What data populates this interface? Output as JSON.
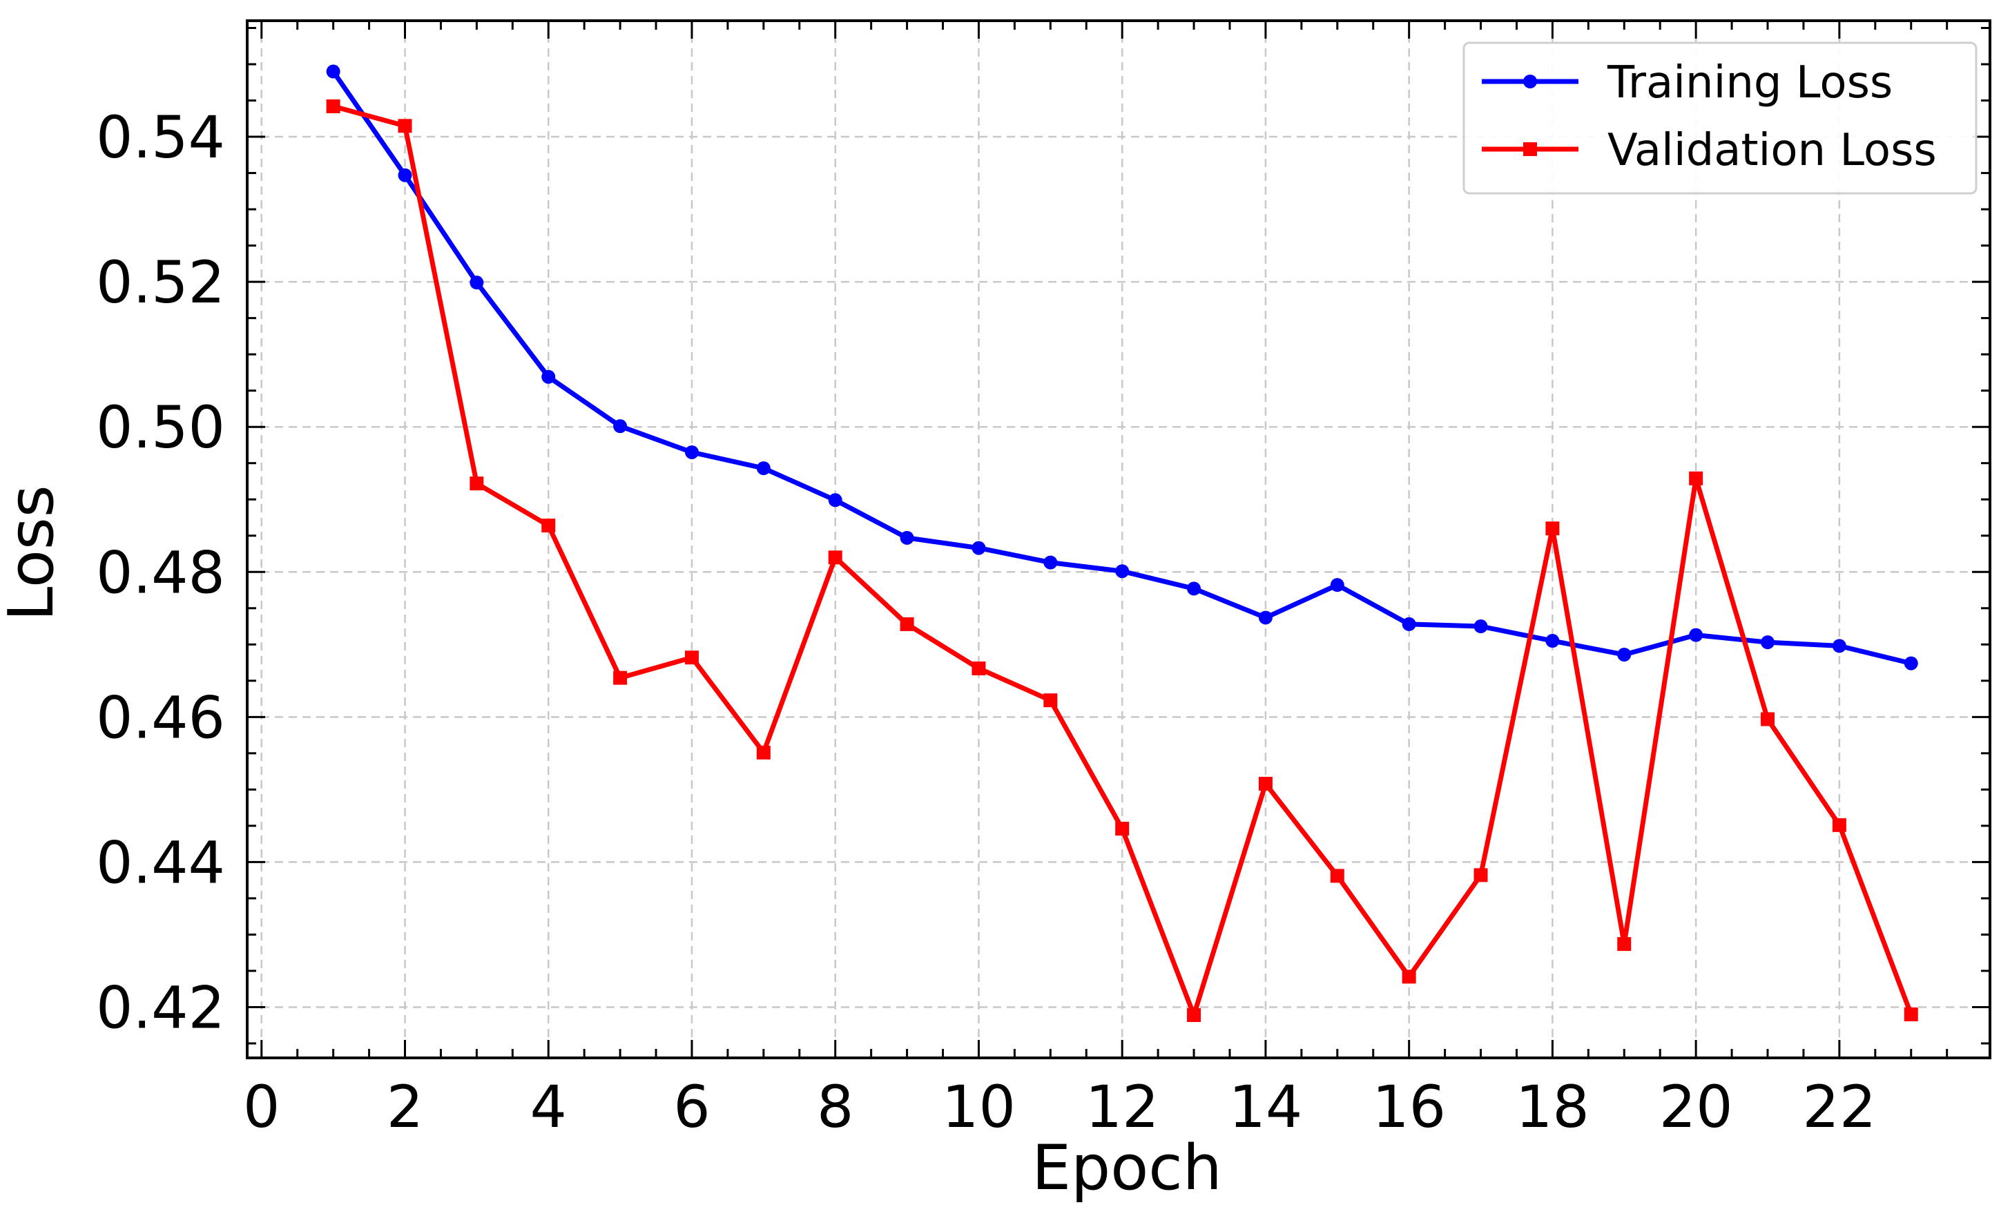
{
  "chart_data": {
    "type": "line",
    "title": "",
    "xlabel": "Epoch",
    "ylabel": "Loss",
    "xlim": [
      -0.2,
      24.1
    ],
    "ylim": [
      0.413,
      0.556
    ],
    "xticks": [
      0,
      2,
      4,
      6,
      8,
      10,
      12,
      14,
      16,
      18,
      20,
      22
    ],
    "xtick_labels": [
      "0",
      "2",
      "4",
      "6",
      "8",
      "10",
      "12",
      "14",
      "16",
      "18",
      "20",
      "22"
    ],
    "yticks": [
      0.42,
      0.44,
      0.46,
      0.48,
      0.5,
      0.52,
      0.54
    ],
    "ytick_labels": [
      "0.42",
      "0.44",
      "0.46",
      "0.48",
      "0.50",
      "0.52",
      "0.54"
    ],
    "grid": true,
    "legend_position": "top-right",
    "x": [
      1,
      2,
      3,
      4,
      5,
      6,
      7,
      8,
      9,
      10,
      11,
      12,
      13,
      14,
      15,
      16,
      17,
      18,
      19,
      20,
      21,
      22,
      23
    ],
    "series": [
      {
        "name": "Training Loss",
        "color": "#0000ff",
        "marker": "circle",
        "values": [
          0.549,
          0.5347,
          0.5199,
          0.5069,
          0.5001,
          0.4965,
          0.4943,
          0.4899,
          0.4847,
          0.4833,
          0.4813,
          0.4801,
          0.4777,
          0.4737,
          0.4782,
          0.4728,
          0.4725,
          0.4705,
          0.4686,
          0.4713,
          0.4703,
          0.4698,
          0.4674
        ]
      },
      {
        "name": "Validation Loss",
        "color": "#ff0000",
        "marker": "square",
        "values": [
          0.5442,
          0.5415,
          0.4922,
          0.4864,
          0.4654,
          0.4682,
          0.4551,
          0.482,
          0.4728,
          0.4667,
          0.4623,
          0.4446,
          0.4189,
          0.4508,
          0.4381,
          0.4242,
          0.4382,
          0.486,
          0.4287,
          0.4929,
          0.4597,
          0.4451,
          0.419
        ]
      }
    ]
  }
}
